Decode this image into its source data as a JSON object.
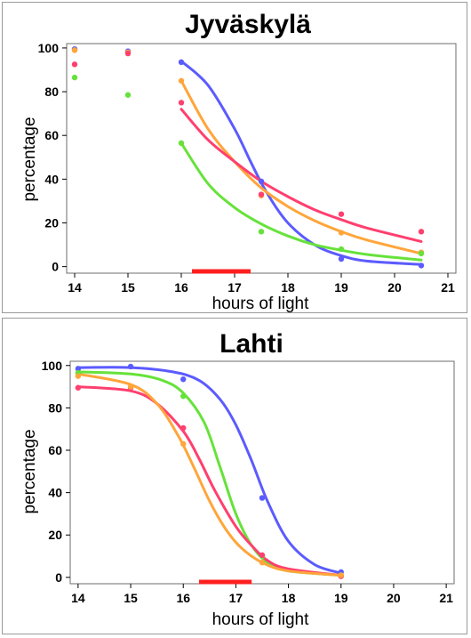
{
  "chart_data": [
    {
      "type": "scatter",
      "title": "Jyväskylä",
      "xlabel": "hours of light",
      "ylabel": "percentage",
      "xlim": [
        13.85,
        21.15
      ],
      "ylim": [
        -3,
        102
      ],
      "xticks": [
        14,
        15,
        16,
        17,
        18,
        19,
        20,
        21
      ],
      "yticks": [
        0,
        20,
        40,
        60,
        80,
        100
      ],
      "grid": false,
      "marked_interval": [
        16.2,
        17.3
      ],
      "marked_interval_color": "#ff1f1f",
      "series": [
        {
          "color": "#5b5bff",
          "points": [
            [
              14,
              99.5
            ],
            [
              15,
              98.5
            ],
            [
              16,
              93.5
            ],
            [
              17.5,
              39
            ],
            [
              19,
              3.5
            ],
            [
              20.5,
              0.5
            ]
          ],
          "fit": [
            [
              16,
              94
            ],
            [
              16.5,
              83
            ],
            [
              17,
              63
            ],
            [
              17.3,
              48
            ],
            [
              17.6,
              34
            ],
            [
              18,
              20
            ],
            [
              18.5,
              10
            ],
            [
              19,
              5
            ],
            [
              19.5,
              2.5
            ],
            [
              20.5,
              1
            ]
          ]
        },
        {
          "color": "#ffa53a",
          "points": [
            [
              14,
              99
            ],
            [
              15,
              98
            ],
            [
              16,
              85
            ],
            [
              17.5,
              32.5
            ],
            [
              19,
              15.5
            ],
            [
              20.5,
              6.5
            ]
          ],
          "fit": [
            [
              16,
              85
            ],
            [
              16.5,
              63
            ],
            [
              17,
              48
            ],
            [
              17.5,
              36
            ],
            [
              18,
              27.5
            ],
            [
              18.5,
              21
            ],
            [
              19,
              16
            ],
            [
              19.5,
              12
            ],
            [
              20.5,
              6
            ]
          ]
        },
        {
          "color": "#ff3f6f",
          "points": [
            [
              14,
              92.5
            ],
            [
              15,
              97.5
            ],
            [
              16,
              75
            ],
            [
              17.5,
              33
            ],
            [
              19,
              24
            ],
            [
              20.5,
              16
            ]
          ],
          "fit": [
            [
              16,
              72
            ],
            [
              16.5,
              58
            ],
            [
              17,
              48
            ],
            [
              17.5,
              39
            ],
            [
              18,
              32
            ],
            [
              18.5,
              26
            ],
            [
              19,
              21.5
            ],
            [
              19.5,
              17.5
            ],
            [
              20.5,
              11.5
            ]
          ]
        },
        {
          "color": "#66e23a",
          "points": [
            [
              14,
              86.5
            ],
            [
              15,
              78.5
            ],
            [
              16,
              56.5
            ],
            [
              17.5,
              16
            ],
            [
              19,
              8
            ],
            [
              20.5,
              6
            ]
          ],
          "fit": [
            [
              16,
              56.5
            ],
            [
              16.5,
              38
            ],
            [
              17,
              27
            ],
            [
              17.5,
              19.5
            ],
            [
              18,
              14
            ],
            [
              18.5,
              10
            ],
            [
              19,
              7.5
            ],
            [
              19.5,
              5.5
            ],
            [
              20.5,
              3
            ]
          ]
        }
      ]
    },
    {
      "type": "scatter",
      "title": "Lahti",
      "xlabel": "hours of light",
      "ylabel": "percentage",
      "xlim": [
        13.85,
        21.15
      ],
      "ylim": [
        -3,
        102
      ],
      "xticks": [
        14,
        15,
        16,
        17,
        18,
        19,
        20,
        21
      ],
      "yticks": [
        0,
        20,
        40,
        60,
        80,
        100
      ],
      "grid": false,
      "marked_interval": [
        16.3,
        17.3
      ],
      "marked_interval_color": "#ff1f1f",
      "series": [
        {
          "color": "#5b5bff",
          "points": [
            [
              14,
              98.5
            ],
            [
              15,
              99.5
            ],
            [
              16,
              93.5
            ],
            [
              17.5,
              37.5
            ],
            [
              19,
              2.5
            ]
          ],
          "fit": [
            [
              14,
              99
            ],
            [
              15,
              99
            ],
            [
              15.8,
              97
            ],
            [
              16.3,
              93
            ],
            [
              16.7,
              84
            ],
            [
              17,
              72
            ],
            [
              17.3,
              55
            ],
            [
              17.6,
              36
            ],
            [
              18,
              17
            ],
            [
              18.5,
              6
            ],
            [
              19,
              2
            ]
          ]
        },
        {
          "color": "#66e23a",
          "points": [
            [
              14,
              96.5
            ],
            [
              16,
              85.5
            ],
            [
              17.5,
              10
            ],
            [
              19,
              1
            ]
          ],
          "fit": [
            [
              14,
              97
            ],
            [
              15,
              96
            ],
            [
              15.6,
              93
            ],
            [
              16,
              87
            ],
            [
              16.4,
              73
            ],
            [
              16.7,
              52
            ],
            [
              17,
              30
            ],
            [
              17.3,
              15
            ],
            [
              17.6,
              7
            ],
            [
              18,
              3
            ],
            [
              19,
              1
            ]
          ]
        },
        {
          "color": "#ff3f6f",
          "points": [
            [
              14,
              89.5
            ],
            [
              15,
              89.5
            ],
            [
              16,
              70.5
            ],
            [
              17.5,
              10.5
            ],
            [
              19,
              0.5
            ]
          ],
          "fit": [
            [
              14,
              90
            ],
            [
              15,
              88
            ],
            [
              15.5,
              82
            ],
            [
              16,
              69
            ],
            [
              16.3,
              56
            ],
            [
              16.6,
              41
            ],
            [
              17,
              24
            ],
            [
              17.3,
              15
            ],
            [
              17.6,
              8
            ],
            [
              18,
              4
            ],
            [
              19,
              1
            ]
          ]
        },
        {
          "color": "#ffa53a",
          "points": [
            [
              14,
              95
            ],
            [
              15,
              90
            ],
            [
              16,
              63
            ],
            [
              17.5,
              7
            ],
            [
              19,
              1
            ]
          ],
          "fit": [
            [
              14,
              96
            ],
            [
              15,
              91
            ],
            [
              15.5,
              82
            ],
            [
              15.9,
              67
            ],
            [
              16.2,
              52
            ],
            [
              16.5,
              36
            ],
            [
              16.8,
              23
            ],
            [
              17.1,
              14
            ],
            [
              17.5,
              7
            ],
            [
              18,
              3
            ],
            [
              19,
              1
            ]
          ]
        }
      ]
    }
  ]
}
